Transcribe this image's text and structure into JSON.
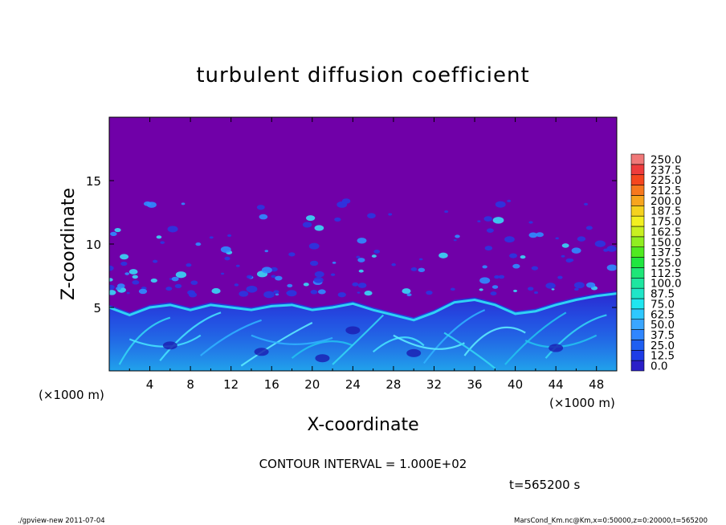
{
  "chart_data": {
    "type": "heatmap",
    "title": "turbulent diffusion coefficient",
    "xlabel": "X-coordinate",
    "ylabel": "Z-coordinate",
    "x_unit": "(×1000 m)",
    "y_unit": "(×1000 m)",
    "xlim": [
      0,
      50
    ],
    "ylim": [
      0,
      20
    ],
    "x_ticks": [
      4,
      8,
      12,
      16,
      20,
      24,
      28,
      32,
      36,
      40,
      44,
      48
    ],
    "y_ticks": [
      5,
      10,
      15
    ],
    "colorbar": {
      "levels": [
        "0.0",
        "12.5",
        "25.0",
        "37.5",
        "50.0",
        "62.5",
        "75.0",
        "87.5",
        "100.0",
        "112.5",
        "125.0",
        "137.5",
        "150.0",
        "162.5",
        "175.0",
        "187.5",
        "200.0",
        "212.5",
        "225.0",
        "237.5",
        "250.0"
      ],
      "colors": [
        "#2a1fc8",
        "#1e3ce6",
        "#1f5ff2",
        "#2f86ff",
        "#3aa6ff",
        "#2ec8ff",
        "#1fe6f0",
        "#20e6c8",
        "#1ee6a0",
        "#1ee678",
        "#20e640",
        "#50ea20",
        "#90ee20",
        "#c8f020",
        "#f2f020",
        "#f5d21e",
        "#f7a51e",
        "#f7781e",
        "#f5461e",
        "#ee3c3c",
        "#f07878"
      ],
      "background_color": "#7000a8"
    },
    "contour_interval": "CONTOUR INTERVAL = 1.000E+02",
    "time_label": "t=565200 s",
    "footer_left": "./gpview-new   2011-07-04",
    "footer_right": "MarsCond_Km.nc@Km,x=0:50000,z=0:20000,t=565200"
  }
}
